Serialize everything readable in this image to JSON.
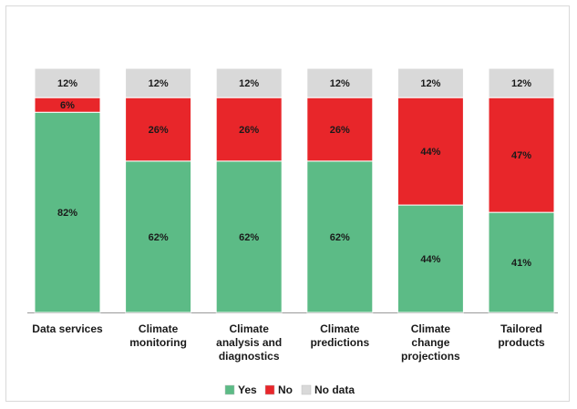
{
  "chart_data": {
    "type": "bar",
    "stacked": true,
    "percent": true,
    "categories": [
      [
        "Data services"
      ],
      [
        "Climate",
        "monitoring"
      ],
      [
        "Climate",
        "analysis and",
        "diagnostics"
      ],
      [
        "Climate",
        "predictions"
      ],
      [
        "Climate",
        "change",
        "projections"
      ],
      [
        "Tailored",
        "products"
      ]
    ],
    "series": [
      {
        "name": "Yes",
        "color": "#5cbb86",
        "label_color": "#1a1a1a",
        "values": [
          82,
          62,
          62,
          62,
          44,
          41
        ],
        "labels": [
          "82%",
          "62%",
          "62%",
          "62%",
          "44%",
          "41%"
        ]
      },
      {
        "name": "No",
        "color": "#e8262a",
        "label_color": "#1a1a1a",
        "values": [
          6,
          26,
          26,
          26,
          44,
          47
        ],
        "labels": [
          "6%",
          "26%",
          "26%",
          "26%",
          "44%",
          "47%"
        ]
      },
      {
        "name": "No data",
        "color": "#d9d9d9",
        "label_color": "#1a1a1a",
        "values": [
          12,
          12,
          12,
          12,
          12,
          12
        ],
        "labels": [
          "12%",
          "12%",
          "12%",
          "12%",
          "12%",
          "12%"
        ]
      }
    ],
    "ylim": [
      0,
      100
    ],
    "grid": false,
    "legend_position": "bottom-center"
  }
}
